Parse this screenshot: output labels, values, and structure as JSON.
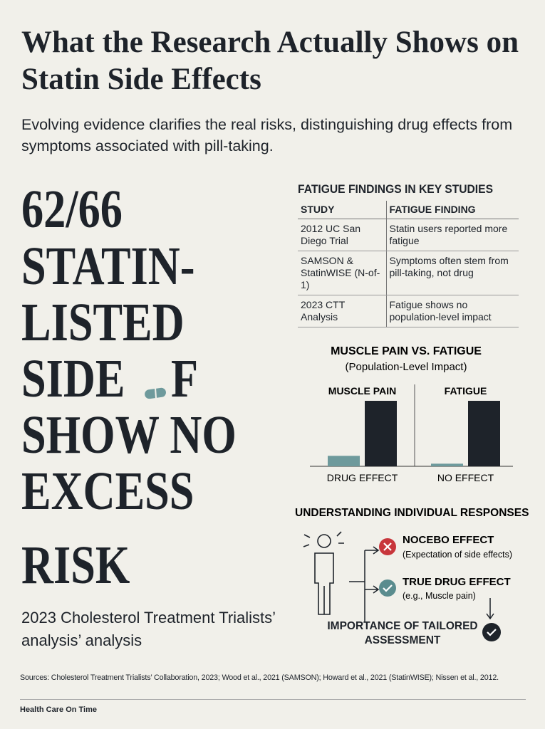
{
  "header": {
    "title": "What the Research Actually Shows on Statin Side Effects",
    "subtitle": "Evolving evidence clarifies the real risks, distinguishing drug effects from symptoms associated with pill-taking."
  },
  "headline": {
    "lines": [
      "62/66",
      "STATIN-",
      "LISTED",
      "SIDE",
      "F",
      "SHOW NO",
      "EXCESS",
      "RISK"
    ],
    "note": "2023 Cholesterol Treatment Trialists’ analysis’ analysis"
  },
  "table": {
    "title": "FATIGUE FINDINGS IN KEY STUDIES",
    "columns": [
      "STUDY",
      "FATIGUE FINDING"
    ],
    "rows": [
      [
        "2012 UC San Diego Trial",
        "Statin users reported more fatigue"
      ],
      [
        "SAMSON & StatinWISE (N-of-1)",
        "Symptoms often stem from pill-taking, not drug"
      ],
      [
        "2023 CTT Analysis",
        "Fatigue shows no population-level impact"
      ]
    ]
  },
  "chart_data": {
    "type": "bar",
    "title": "MUSCLE PAIN VS. FATIGUE",
    "subtitle": "(Population-Level Impact)",
    "categories": [
      "MUSCLE PAIN",
      "FATIGUE"
    ],
    "category_notes": [
      "DRUG EFFECT",
      "NO EFFECT"
    ],
    "series": [
      {
        "color": "#6e9a9c",
        "values": [
          16,
          4
        ]
      },
      {
        "color": "#1e232a",
        "values": [
          100,
          100
        ]
      }
    ]
  },
  "responses": {
    "title": "UNDERSTANDING INDIVIDUAL RESPONSES",
    "items": [
      {
        "label": "NOCEBO EFFECT",
        "note": "(Expectation of side effects)"
      },
      {
        "label": "TRUE DRUG EFFECT",
        "note": "(e.g., Muscle pain)"
      }
    ],
    "conclusion": "IMPORTANCE OF TAILORED ASSESSMENT"
  },
  "footer": {
    "sources": "Sources: Cholesterol Treatment Trialists’ Collaboration, 2023; Wood et al., 2021 (SAMSON); Howard et al., 2021 (StatinWISE); Nissen et al., 2012.",
    "brand": "Health Care On Time"
  }
}
